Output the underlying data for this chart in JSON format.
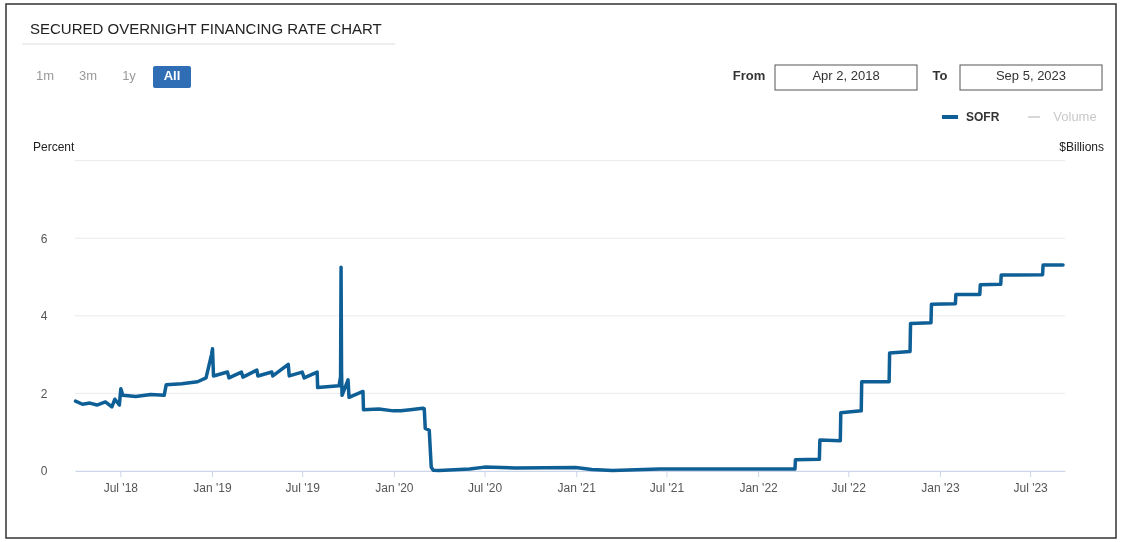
{
  "chart_data": {
    "type": "line",
    "title": "SECURED OVERNIGHT FINANCING RATE CHART",
    "ylabel": "Percent",
    "y2label": "$Billions",
    "annotations": [
      "1m",
      "3m",
      "1y",
      "All",
      "From",
      "Apr 2, 2018",
      "To",
      "Sep 5, 2023",
      "Volume"
    ],
    "xlim": [
      "2018-04-01",
      "2023-09-09"
    ],
    "xticks": [
      {
        "value": "2018-07-01",
        "label": "Jul '18"
      },
      {
        "value": "2019-01-01",
        "label": "Jan '19"
      },
      {
        "value": "2019-07-01",
        "label": "Jul '19"
      },
      {
        "value": "2020-01-01",
        "label": "Jan '20"
      },
      {
        "value": "2020-07-01",
        "label": "Jul '20"
      },
      {
        "value": "2021-01-01",
        "label": "Jan '21"
      },
      {
        "value": "2021-07-01",
        "label": "Jul '21"
      },
      {
        "value": "2022-01-01",
        "label": "Jan '22"
      },
      {
        "value": "2022-07-01",
        "label": "Jul '22"
      },
      {
        "value": "2023-01-01",
        "label": "Jan '23"
      },
      {
        "value": "2023-07-01",
        "label": "Jul '23"
      }
    ],
    "ylim": [
      0,
      8
    ],
    "yticks": [
      0,
      2,
      4,
      6,
      {
        "value": 8,
        "label": null
      }
    ],
    "grid": "y",
    "legend": "top right",
    "line_style": "solid",
    "series": [
      {
        "name": "SOFR",
        "color": "#0f5f97",
        "x": [
          "2018-04-02",
          "2018-04-16",
          "2018-05-01",
          "2018-05-15",
          "2018-06-01",
          "2018-06-14",
          "2018-06-20",
          "2018-06-29",
          "2018-07-02",
          "2018-07-06",
          "2018-08-01",
          "2018-08-31",
          "2018-09-27",
          "2018-10-01",
          "2018-11-01",
          "2018-12-03",
          "2018-12-20",
          "2018-12-31",
          "2019-01-02",
          "2019-01-04",
          "2019-02-01",
          "2019-02-04",
          "2019-03-01",
          "2019-03-04",
          "2019-04-01",
          "2019-04-03",
          "2019-05-01",
          "2019-05-03",
          "2019-06-03",
          "2019-06-05",
          "2019-07-01",
          "2019-07-05",
          "2019-07-31",
          "2019-08-01",
          "2019-09-13",
          "2019-09-16",
          "2019-09-17",
          "2019-09-18",
          "2019-09-19",
          "2019-10-01",
          "2019-10-03",
          "2019-10-31",
          "2019-11-01",
          "2019-12-02",
          "2019-12-31",
          "2020-01-15",
          "2020-02-03",
          "2020-02-28",
          "2020-03-02",
          "2020-03-04",
          "2020-03-12",
          "2020-03-16",
          "2020-03-20",
          "2020-04-01",
          "2020-06-01",
          "2020-07-01",
          "2020-09-01",
          "2020-12-31",
          "2021-02-01",
          "2021-03-15",
          "2021-06-17",
          "2022-03-16",
          "2022-03-17",
          "2022-05-04",
          "2022-05-05",
          "2022-06-15",
          "2022-06-16",
          "2022-07-27",
          "2022-07-28",
          "2022-09-21",
          "2022-09-22",
          "2022-11-02",
          "2022-11-03",
          "2022-12-14",
          "2022-12-15",
          "2023-02-01",
          "2023-02-02",
          "2023-03-22",
          "2023-03-23",
          "2023-05-03",
          "2023-05-04",
          "2023-07-26",
          "2023-07-27",
          "2023-09-05"
        ],
        "values": [
          1.8,
          1.72,
          1.75,
          1.7,
          1.78,
          1.65,
          1.85,
          1.7,
          2.12,
          1.95,
          1.92,
          1.97,
          1.95,
          2.22,
          2.25,
          2.3,
          2.4,
          3.0,
          3.15,
          2.45,
          2.55,
          2.4,
          2.55,
          2.42,
          2.6,
          2.45,
          2.55,
          2.45,
          2.75,
          2.45,
          2.55,
          2.4,
          2.55,
          2.15,
          2.2,
          2.43,
          5.25,
          2.55,
          1.95,
          2.35,
          1.9,
          2.05,
          1.58,
          1.6,
          1.55,
          1.55,
          1.58,
          1.62,
          1.6,
          1.1,
          1.05,
          0.1,
          0.02,
          0.01,
          0.05,
          0.1,
          0.08,
          0.09,
          0.04,
          0.01,
          0.05,
          0.05,
          0.29,
          0.3,
          0.8,
          0.78,
          1.5,
          1.55,
          2.3,
          2.3,
          3.04,
          3.08,
          3.8,
          3.82,
          4.3,
          4.31,
          4.55,
          4.55,
          4.8,
          4.81,
          5.05,
          5.06,
          5.31,
          5.31
        ]
      }
    ]
  }
}
